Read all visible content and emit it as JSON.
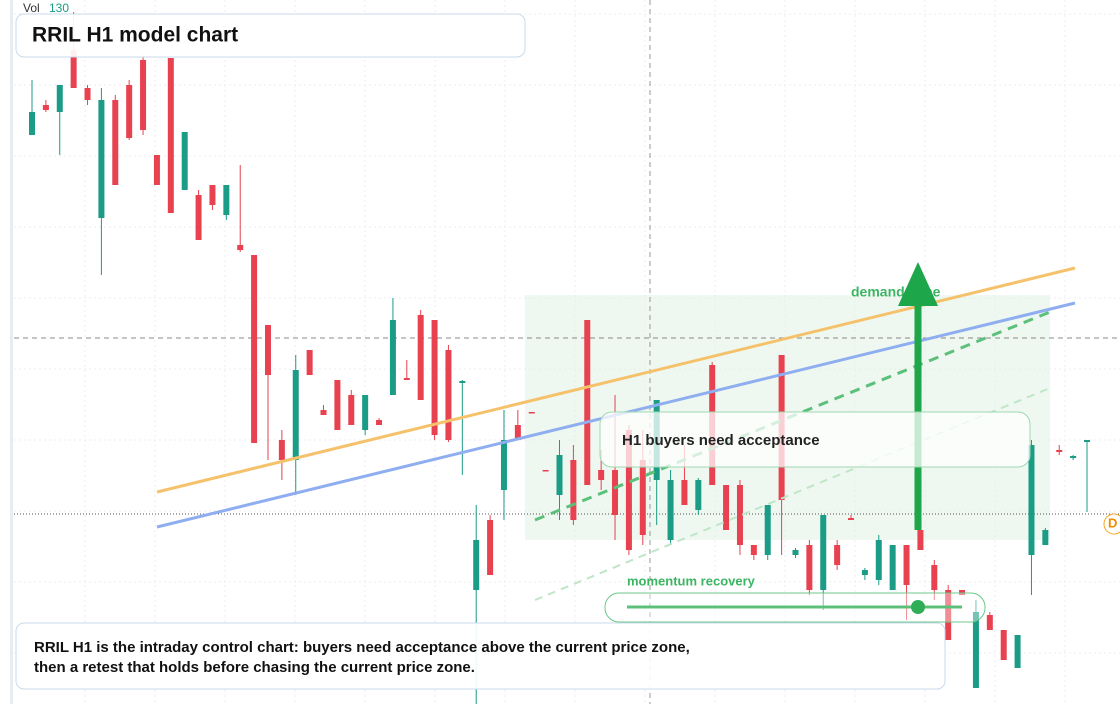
{
  "chart_data": {
    "type": "candlestick",
    "title": "RRIL H1 model chart",
    "volume_label": "Vol",
    "volume_value": 130,
    "annotations": {
      "zone": "demand zone",
      "acceptance": "H1 buyers need acceptance",
      "momentum": "momentum recovery",
      "badge": "D"
    },
    "caption": [
      "RRIL H1 is the intraday control chart: buyers need acceptance above the current price zone,",
      "then a retest that holds before chasing the current price zone."
    ],
    "up_color": "#1a9c86",
    "down_color": "#e8414f",
    "ylim": [
      0,
      704
    ],
    "open": [
      569,
      599,
      592,
      654,
      616,
      486,
      604,
      619,
      644,
      549,
      646,
      514,
      509,
      519,
      489,
      459,
      449,
      379,
      264,
      244,
      354,
      294,
      324,
      309,
      274,
      284,
      309,
      326,
      389,
      384,
      354,
      321,
      114,
      184,
      214,
      279,
      292,
      234,
      209,
      244,
      384,
      234,
      234,
      274,
      244,
      224,
      164,
      224,
      194,
      339,
      219,
      219,
      159,
      149,
      349,
      149,
      159,
      114,
      159,
      186,
      129,
      124,
      114,
      159,
      174,
      139,
      114,
      114,
      16,
      89,
      74,
      36,
      149,
      159,
      254,
      246,
      262
    ],
    "high": [
      624,
      604,
      619,
      692,
      619,
      616,
      609,
      624,
      649,
      549,
      646,
      572,
      514,
      519,
      519,
      539,
      449,
      379,
      274,
      349,
      354,
      299,
      324,
      314,
      309,
      286,
      406,
      344,
      394,
      384,
      359,
      324,
      199,
      189,
      294,
      294,
      292,
      234,
      264,
      259,
      384,
      254,
      309,
      279,
      274,
      304,
      234,
      259,
      226,
      342,
      219,
      224,
      159,
      199,
      349,
      156,
      164,
      189,
      164,
      189,
      136,
      169,
      159,
      159,
      179,
      144,
      119,
      114,
      104,
      92,
      74,
      69,
      264,
      176,
      259,
      249,
      264
    ],
    "low": [
      569,
      592,
      549,
      616,
      599,
      429,
      519,
      564,
      569,
      519,
      491,
      514,
      464,
      494,
      484,
      452,
      261,
      244,
      224,
      209,
      329,
      289,
      274,
      279,
      269,
      279,
      309,
      324,
      304,
      264,
      262,
      229,
      0,
      129,
      184,
      264,
      291,
      233,
      184,
      179,
      219,
      214,
      164,
      149,
      159,
      179,
      159,
      199,
      189,
      219,
      174,
      149,
      144,
      144,
      149,
      146,
      109,
      94,
      134,
      184,
      124,
      119,
      114,
      84,
      154,
      104,
      64,
      109,
      16,
      74,
      44,
      36,
      109,
      159,
      249,
      244,
      192
    ],
    "close": [
      592,
      594,
      619,
      616,
      604,
      604,
      519,
      566,
      574,
      519,
      491,
      572,
      464,
      499,
      519,
      454,
      261,
      329,
      244,
      334,
      329,
      289,
      274,
      279,
      309,
      279,
      384,
      324,
      304,
      269,
      264,
      323,
      164,
      129,
      264,
      264,
      291,
      233,
      249,
      184,
      219,
      224,
      189,
      154,
      169,
      304,
      224,
      199,
      224,
      219,
      174,
      159,
      149,
      199,
      204,
      154,
      114,
      189,
      139,
      184,
      134,
      164,
      159,
      119,
      154,
      114,
      64,
      109,
      92,
      74,
      44,
      69,
      259,
      174,
      252,
      248,
      264
    ]
  }
}
